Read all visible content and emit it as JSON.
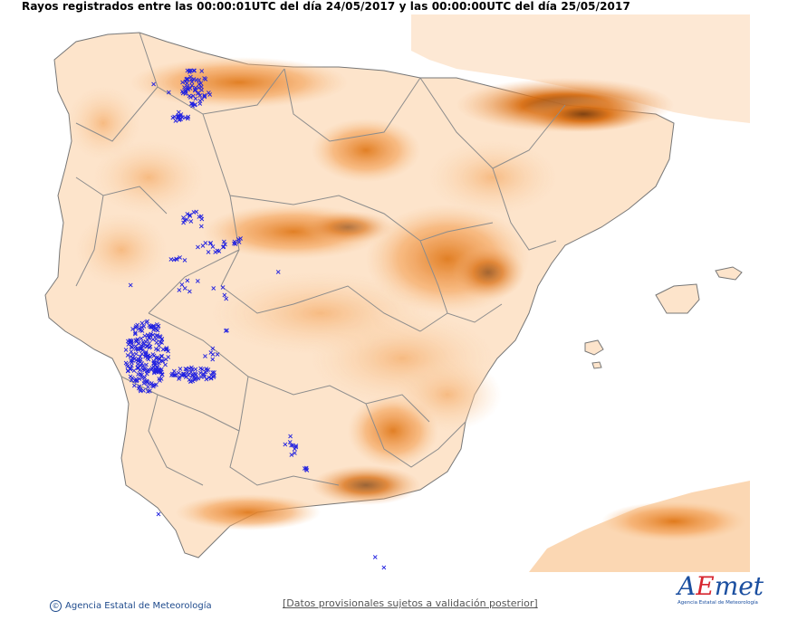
{
  "header": {
    "title": "Rayos registrados entre las 00:00:01UTC del día 24/05/2017 y las 00:00:00UTC del día 25/05/2017"
  },
  "map": {
    "legend_colors": {
      "sea": "#ffffff",
      "land_low": "#fde6cf",
      "land_mid": "#f4b27a",
      "land_high": "#e07a1c",
      "land_peak": "#7a3a08",
      "borders": "#8c8c8c",
      "lightning": "#1a1aff"
    },
    "lightning_marker": "x-marker"
  },
  "footer": {
    "copyright_icon": "copyright-icon",
    "agency": "Agencia Estatal de Meteorología",
    "disclaimer": "[Datos provisionales sujetos a validación posterior]"
  },
  "logo": {
    "name": "AEMet",
    "subtitle": "Agencia Estatal de Meteorología"
  }
}
